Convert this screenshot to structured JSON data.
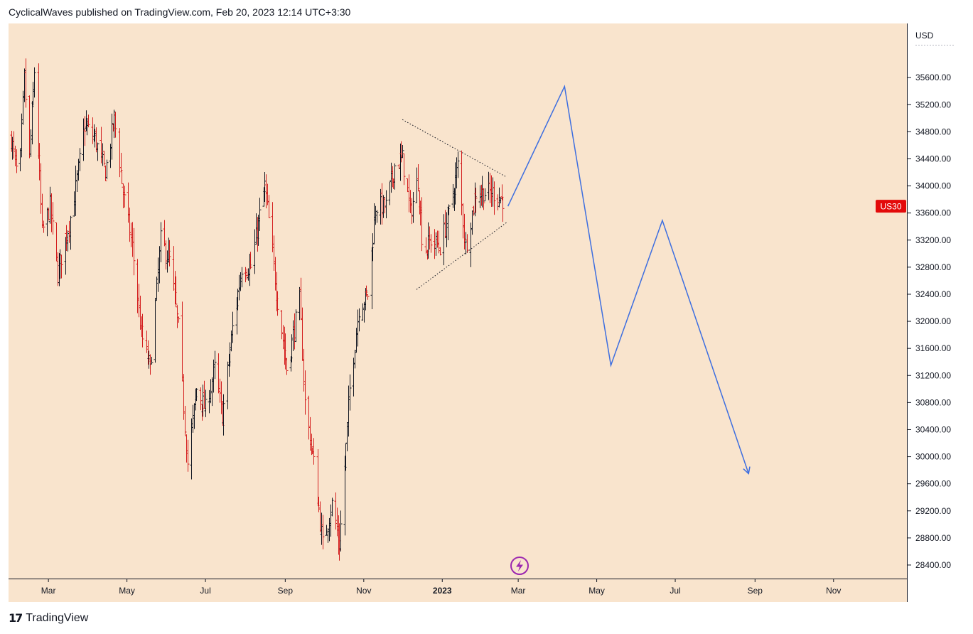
{
  "header": {
    "text": "CyclicalWaves published on TradingView.com, Feb 20, 2023 12:14 UTC+3:30"
  },
  "footer": {
    "brand": "TradingView"
  },
  "colors": {
    "background": "#f9e4cd",
    "up": "#131722",
    "down": "#d41f1f",
    "projection": "#3d6ee0",
    "badge": "#e30a0a",
    "flash": "#9c27b0"
  },
  "chart_data": {
    "type": "ohlc",
    "symbol_badge": "US30",
    "currency_label": "USD",
    "last_price": 33700,
    "ylim": [
      28200,
      36400
    ],
    "price_ticks": [
      35600,
      35200,
      34800,
      34400,
      34000,
      33600,
      33200,
      32800,
      32400,
      32000,
      31600,
      31200,
      30800,
      30400,
      30000,
      29600,
      29200,
      28800,
      28400
    ],
    "price_tick_labels": [
      "35600.00",
      "35200.00",
      "34800.00",
      "34400.00",
      "34000.00",
      "33600.00",
      "33200.00",
      "32800.00",
      "32400.00",
      "32000.00",
      "31600.00",
      "31200.00",
      "30800.00",
      "30400.00",
      "30000.00",
      "29600.00",
      "29200.00",
      "28800.00",
      "28400.00"
    ],
    "time_ticks": [
      {
        "label": "Mar",
        "date": "2022-03-01"
      },
      {
        "label": "May",
        "date": "2022-05-01"
      },
      {
        "label": "Jul",
        "date": "2022-07-01"
      },
      {
        "label": "Sep",
        "date": "2022-09-01"
      },
      {
        "label": "Nov",
        "date": "2022-11-01"
      },
      {
        "label": "2023",
        "date": "2023-01-01",
        "bold": true
      },
      {
        "label": "Mar",
        "date": "2023-03-01"
      },
      {
        "label": "May",
        "date": "2023-05-01"
      },
      {
        "label": "Jul",
        "date": "2023-07-01"
      },
      {
        "label": "Sep",
        "date": "2023-09-01"
      },
      {
        "label": "Nov",
        "date": "2023-11-01"
      }
    ],
    "x_range": [
      "2022-01-29",
      "2023-12-28"
    ],
    "price_path": [
      {
        "date": "2022-01-31",
        "price": 34700
      },
      {
        "date": "2022-02-06",
        "price": 34000
      },
      {
        "date": "2022-02-10",
        "price": 35600
      },
      {
        "date": "2022-02-14",
        "price": 34400
      },
      {
        "date": "2022-02-18",
        "price": 35700
      },
      {
        "date": "2022-02-24",
        "price": 33300
      },
      {
        "date": "2022-03-02",
        "price": 33700
      },
      {
        "date": "2022-03-08",
        "price": 32700
      },
      {
        "date": "2022-03-14",
        "price": 33200
      },
      {
        "date": "2022-03-20",
        "price": 33700
      },
      {
        "date": "2022-03-29",
        "price": 34900
      },
      {
        "date": "2022-04-06",
        "price": 34700
      },
      {
        "date": "2022-04-14",
        "price": 34200
      },
      {
        "date": "2022-04-21",
        "price": 35000
      },
      {
        "date": "2022-04-28",
        "price": 33900
      },
      {
        "date": "2022-05-05",
        "price": 33100
      },
      {
        "date": "2022-05-12",
        "price": 31800
      },
      {
        "date": "2022-05-19",
        "price": 31300
      },
      {
        "date": "2022-05-27",
        "price": 33200
      },
      {
        "date": "2022-06-03",
        "price": 32900
      },
      {
        "date": "2022-06-10",
        "price": 31900
      },
      {
        "date": "2022-06-17",
        "price": 29900
      },
      {
        "date": "2022-06-24",
        "price": 31000
      },
      {
        "date": "2022-07-01",
        "price": 30700
      },
      {
        "date": "2022-07-08",
        "price": 31300
      },
      {
        "date": "2022-07-14",
        "price": 30600
      },
      {
        "date": "2022-07-22",
        "price": 31900
      },
      {
        "date": "2022-07-29",
        "price": 32800
      },
      {
        "date": "2022-08-05",
        "price": 32800
      },
      {
        "date": "2022-08-16",
        "price": 34000
      },
      {
        "date": "2022-08-26",
        "price": 32300
      },
      {
        "date": "2022-09-02",
        "price": 31300
      },
      {
        "date": "2022-09-12",
        "price": 32300
      },
      {
        "date": "2022-09-16",
        "price": 30800
      },
      {
        "date": "2022-09-23",
        "price": 29900
      },
      {
        "date": "2022-09-30",
        "price": 28700
      },
      {
        "date": "2022-10-07",
        "price": 29300
      },
      {
        "date": "2022-10-13",
        "price": 28700
      },
      {
        "date": "2022-10-21",
        "price": 31000
      },
      {
        "date": "2022-10-28",
        "price": 32200
      },
      {
        "date": "2022-11-04",
        "price": 32400
      },
      {
        "date": "2022-11-10",
        "price": 33700
      },
      {
        "date": "2022-11-18",
        "price": 33700
      },
      {
        "date": "2022-11-25",
        "price": 34300
      },
      {
        "date": "2022-12-01",
        "price": 34400
      },
      {
        "date": "2022-12-07",
        "price": 33600
      },
      {
        "date": "2022-12-13",
        "price": 34100
      },
      {
        "date": "2022-12-17",
        "price": 33000
      },
      {
        "date": "2022-12-23",
        "price": 33200
      },
      {
        "date": "2022-12-30",
        "price": 33100
      },
      {
        "date": "2023-01-06",
        "price": 33600
      },
      {
        "date": "2023-01-13",
        "price": 34300
      },
      {
        "date": "2023-01-19",
        "price": 33100
      },
      {
        "date": "2023-01-27",
        "price": 33900
      },
      {
        "date": "2023-02-03",
        "price": 33900
      },
      {
        "date": "2023-02-10",
        "price": 33900
      },
      {
        "date": "2023-02-17",
        "price": 33800
      }
    ],
    "triangle": {
      "upper": [
        {
          "date": "2022-12-01",
          "price": 34980
        },
        {
          "date": "2023-02-20",
          "price": 34130
        }
      ],
      "lower": [
        {
          "date": "2022-12-12",
          "price": 32470
        },
        {
          "date": "2023-02-20",
          "price": 33460
        }
      ]
    },
    "projection": [
      {
        "date": "2023-02-21",
        "price": 33700
      },
      {
        "date": "2023-04-06",
        "price": 35470
      },
      {
        "date": "2023-05-12",
        "price": 31350
      },
      {
        "date": "2023-06-21",
        "price": 33490
      },
      {
        "date": "2023-08-27",
        "price": 29750
      }
    ]
  }
}
